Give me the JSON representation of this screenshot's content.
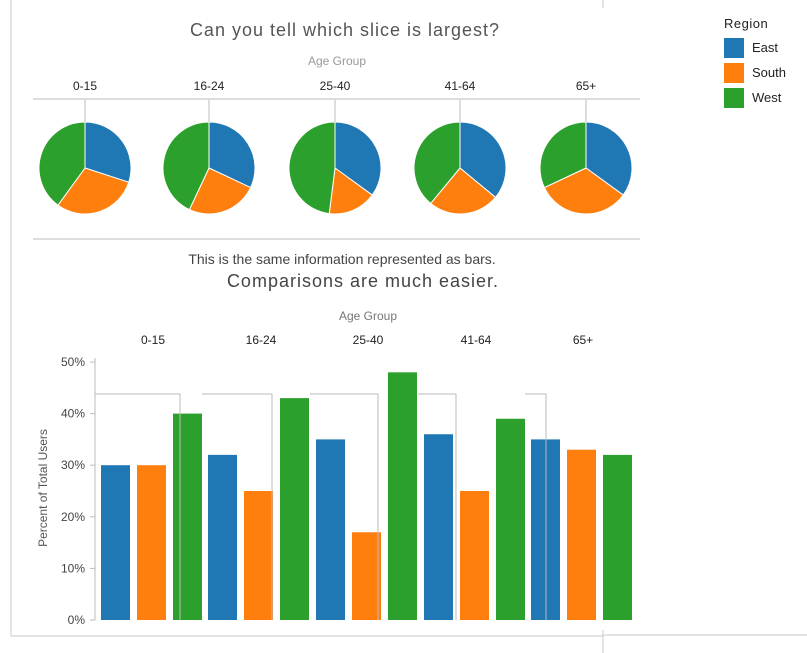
{
  "chart_data": [
    {
      "type": "pie",
      "title": "Can you tell which slice is largest?",
      "facet_label": "Age Group",
      "categories": [
        "0-15",
        "16-24",
        "25-40",
        "41-64",
        "65+"
      ],
      "series": [
        {
          "name": "East",
          "values": [
            30,
            32,
            35,
            36,
            35
          ]
        },
        {
          "name": "South",
          "values": [
            30,
            25,
            17,
            25,
            33
          ]
        },
        {
          "name": "West",
          "values": [
            40,
            43,
            48,
            39,
            32
          ]
        }
      ]
    },
    {
      "type": "bar",
      "title": "Comparisons are much easier.",
      "subtitle": "This is the same information represented as bars.",
      "facet_label": "Age Group",
      "ylabel": "Percent of Total Users",
      "ylim": [
        0,
        50
      ],
      "yticks": [
        "0%",
        "10%",
        "20%",
        "30%",
        "40%",
        "50%"
      ],
      "categories": [
        "0-15",
        "16-24",
        "25-40",
        "41-64",
        "65+"
      ],
      "series": [
        {
          "name": "East",
          "values": [
            30,
            32,
            35,
            36,
            35
          ]
        },
        {
          "name": "South",
          "values": [
            30,
            25,
            17,
            25,
            33
          ]
        },
        {
          "name": "West",
          "values": [
            40,
            43,
            48,
            39,
            32
          ]
        }
      ],
      "grid": false
    }
  ],
  "legend": {
    "title": "Region",
    "items": [
      {
        "label": "East",
        "color": "#1f77b4"
      },
      {
        "label": "South",
        "color": "#ff7f0e"
      },
      {
        "label": "West",
        "color": "#2ca02c"
      }
    ],
    "placement": "top-right"
  }
}
